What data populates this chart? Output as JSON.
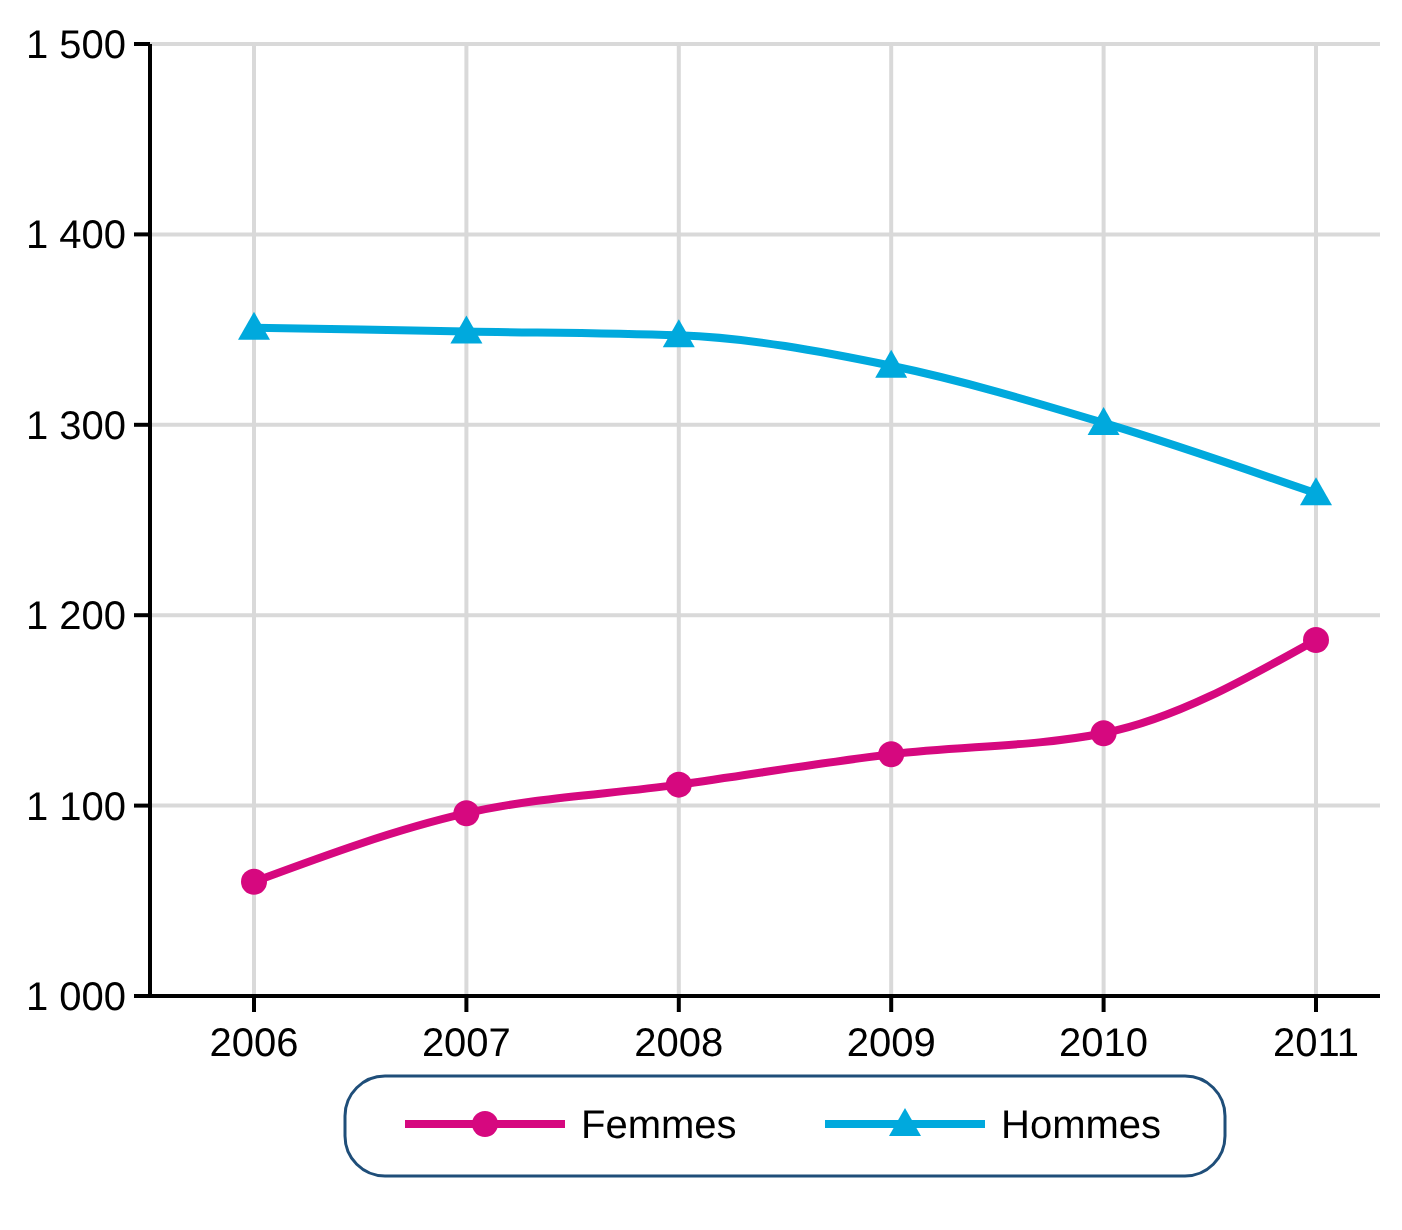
{
  "chart_data": {
    "type": "line",
    "categories": [
      "2006",
      "2007",
      "2008",
      "2009",
      "2010",
      "2011"
    ],
    "series": [
      {
        "name": "Femmes",
        "color": "#d6087f",
        "marker": "circle",
        "values": [
          1060,
          1096,
          1111,
          1127,
          1138,
          1187
        ]
      },
      {
        "name": "Hommes",
        "color": "#00a9dd",
        "marker": "triangle",
        "values": [
          1351,
          1349,
          1347,
          1331,
          1301,
          1264
        ]
      }
    ],
    "ylim": [
      1000,
      1500
    ],
    "yticks": [
      {
        "value": 1000,
        "label": "1 000"
      },
      {
        "value": 1100,
        "label": "1 100"
      },
      {
        "value": 1200,
        "label": "1 200"
      },
      {
        "value": 1300,
        "label": "1 300"
      },
      {
        "value": 1400,
        "label": "1 400"
      },
      {
        "value": 1500,
        "label": "1 500"
      }
    ],
    "grid": true,
    "legend": "bottom",
    "line_style": "solid"
  }
}
